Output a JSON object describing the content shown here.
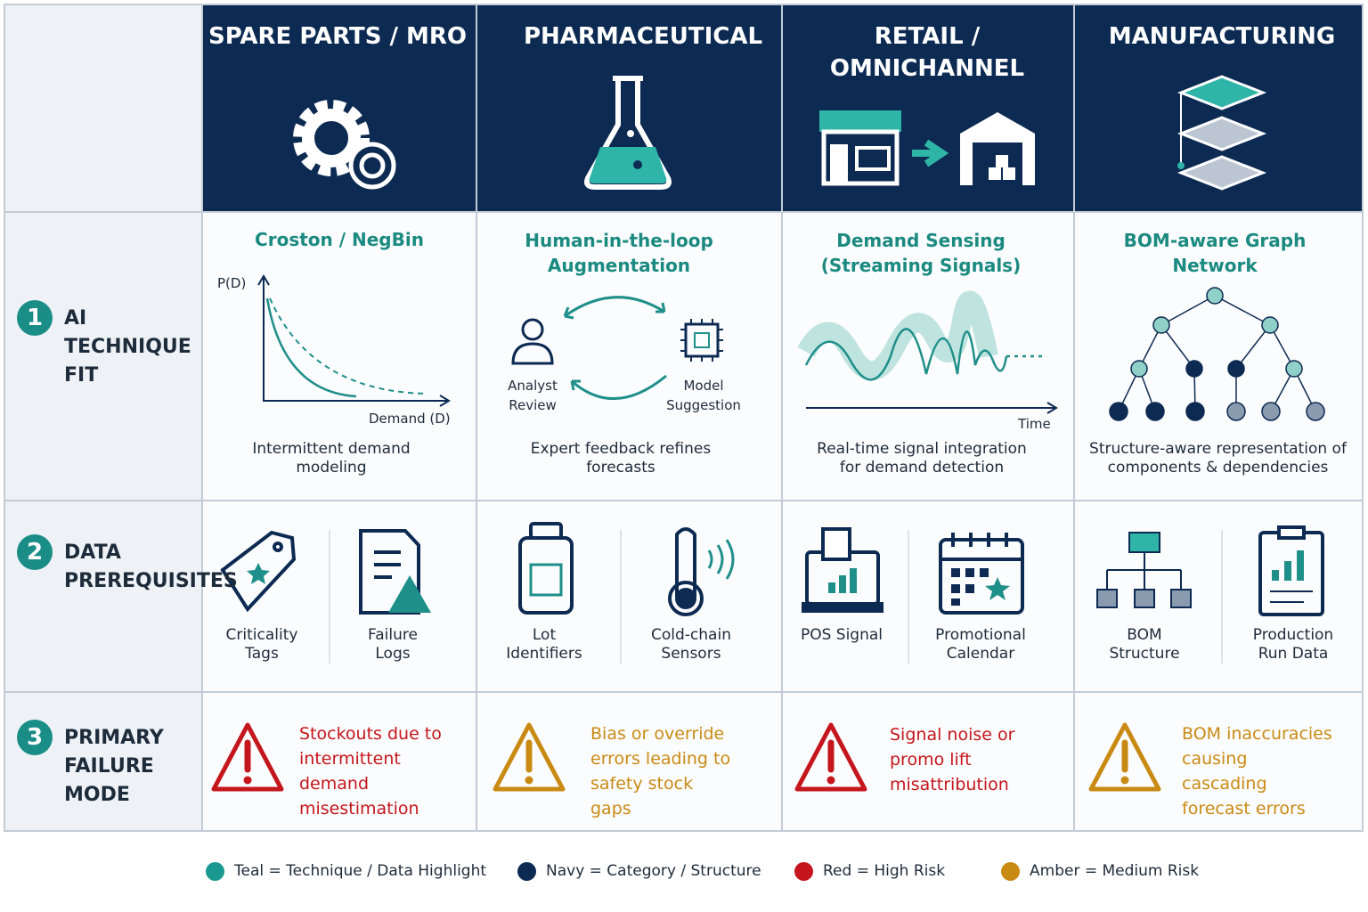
{
  "header": {
    "columns": [
      "SPARE PARTS / MRO",
      "PHARMACEUTICAL",
      "RETAIL / OMNICHANNEL",
      "MANUFACTURING"
    ]
  },
  "rows": [
    {
      "number": "1",
      "label": "AI TECHNIQUE FIT"
    },
    {
      "number": "2",
      "label": "DATA PREREQUISITES"
    },
    {
      "number": "3",
      "label": "PRIMARY FAILURE MODE"
    }
  ],
  "techniques": [
    {
      "title": "Croston / NegBin",
      "caption": "Intermittent demand modeling",
      "y_axis": "P(D)",
      "x_axis": "Demand (D)"
    },
    {
      "title": "Human-in-the-loop Augmentation",
      "caption": "Expert feedback refines forecasts",
      "left": "Analyst Review",
      "right": "Model Suggestion"
    },
    {
      "title": "Demand Sensing (Streaming Signals)",
      "caption": "Real-time signal integration for demand detection",
      "x_axis": "Time"
    },
    {
      "title": "BOM-aware Graph Network",
      "caption": "Structure-aware representation of components & dependencies"
    }
  ],
  "prerequisites": [
    [
      "Criticality Tags",
      "Failure Logs"
    ],
    [
      "Lot Identifiers",
      "Cold-chain Sensors"
    ],
    [
      "POS Signal",
      "Promotional Calendar"
    ],
    [
      "BOM Structure",
      "Production Run Data"
    ]
  ],
  "failures": [
    {
      "text": "Stockouts due to intermittent demand misestimation",
      "color": "#c4161c"
    },
    {
      "text": "Bias or override errors leading to safety stock gaps",
      "color": "#c98a14"
    },
    {
      "text": "Signal noise or promo lift misattribution",
      "color": "#c4161c"
    },
    {
      "text": "BOM inaccuracies causing cascading forecast errors",
      "color": "#c98a14"
    }
  ],
  "legend": [
    {
      "label": "Teal = Technique / Data Highlight",
      "color": "#1a9990"
    },
    {
      "label": "Navy = Category / Structure",
      "color": "#0c2a52"
    },
    {
      "label": "Red = High Risk",
      "color": "#c4161c"
    },
    {
      "label": "Amber = Medium Risk",
      "color": "#c98a14"
    }
  ]
}
